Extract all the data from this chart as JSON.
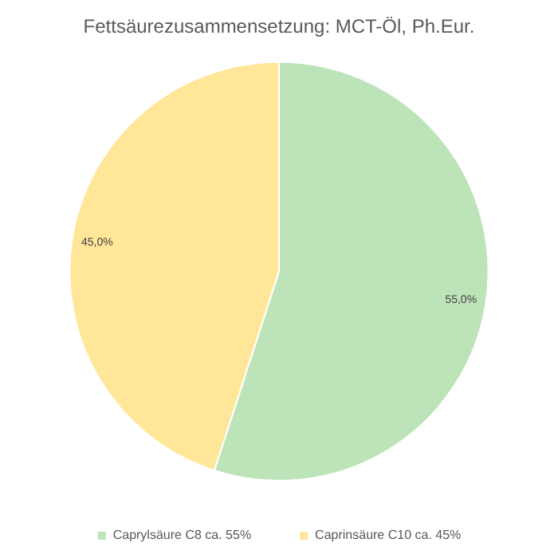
{
  "chart_data": {
    "type": "pie",
    "title": "Fettsäurezusammensetzung: MCT-Öl, Ph.Eur.",
    "categories": [
      "Caprylsäure C8 ca. 55%",
      "Caprinsäure C10 ca. 45%"
    ],
    "values": [
      55,
      45
    ],
    "colors": [
      "#bde3b8",
      "#ffe699"
    ],
    "value_labels": [
      "55,0%",
      "45,0%"
    ],
    "legend": "bottom"
  }
}
